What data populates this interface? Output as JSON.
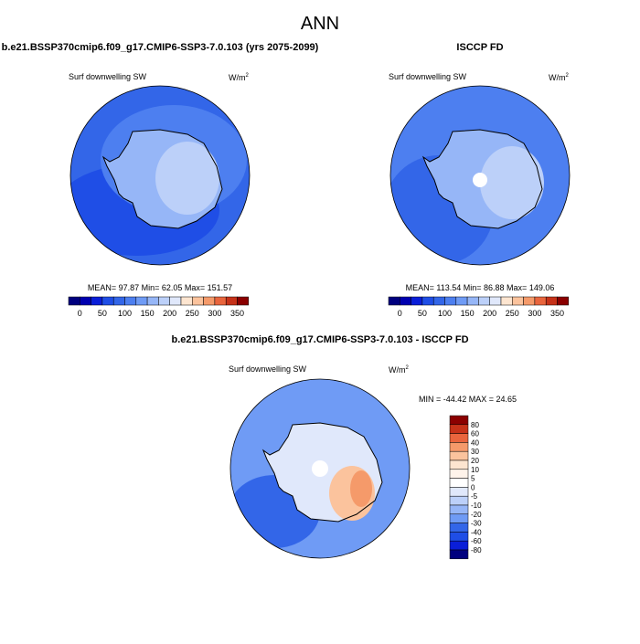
{
  "title": "ANN",
  "panels": [
    {
      "title": "b.e21.BSSP370cmip6.f09_g17.CMIP6-SSP3-7.0.103 (yrs 2075-2099)",
      "variable": "Surf downwelling SW",
      "units": "W/m",
      "units_power": "2",
      "stats": "MEAN=  97.87  Min=  62.05  Max= 151.57"
    },
    {
      "title": "ISCCP FD",
      "variable": "Surf downwelling SW",
      "units": "W/m",
      "units_power": "2",
      "stats": "MEAN= 113.54  Min=  86.88  Max= 149.06"
    }
  ],
  "colorbar": {
    "colors": [
      "#00007f",
      "#0000b0",
      "#0a1ed8",
      "#1f4ee6",
      "#3366e8",
      "#4d7ff0",
      "#6f9bf5",
      "#96b6f7",
      "#bcd0f9",
      "#e0e8fb",
      "#fde5d0",
      "#fbc39d",
      "#f59a6a",
      "#e9653d",
      "#c63219",
      "#8b0000"
    ],
    "labels": [
      0,
      50,
      100,
      150,
      200,
      250,
      300,
      350
    ]
  },
  "difference": {
    "title": "b.e21.BSSP370cmip6.f09_g17.CMIP6-SSP3-7.0.103 - ISCCP FD",
    "variable": "Surf downwelling SW",
    "units": "W/m",
    "units_power": "2",
    "stats": "MIN = -44.42 MAX =  24.65",
    "colorbar": {
      "colors": [
        "#8b0000",
        "#c63219",
        "#e9653d",
        "#f59a6a",
        "#fbc39d",
        "#fde5d0",
        "#fff3ea",
        "#ffffff",
        "#e0e8fb",
        "#bcd0f9",
        "#96b6f7",
        "#6f9bf5",
        "#3366e8",
        "#1f4ee6",
        "#0a1ed8",
        "#00007f"
      ],
      "labels": [
        80,
        60,
        40,
        30,
        20,
        10,
        5,
        0,
        -5,
        -10,
        -20,
        -30,
        -40,
        -60,
        -80
      ]
    }
  }
}
